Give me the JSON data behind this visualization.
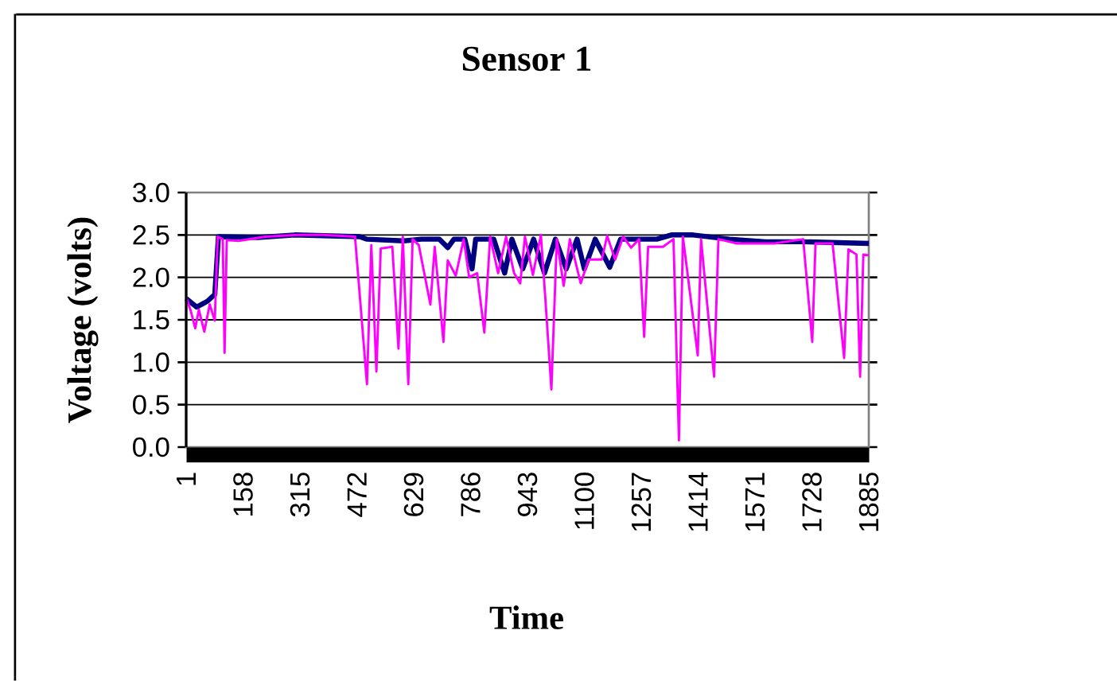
{
  "chart_data": {
    "type": "line",
    "title": "Sensor 1",
    "xlabel": "Time",
    "ylabel": "Voltage (volts)",
    "xlim": [
      1,
      1885
    ],
    "xticks": [
      1,
      158,
      315,
      472,
      629,
      786,
      943,
      1100,
      1257,
      1414,
      1571,
      1728,
      1885
    ],
    "ylim": [
      0,
      3
    ],
    "yticks": [
      {
        "value": 0,
        "label": "0.0"
      },
      0.5,
      {
        "value": 1,
        "label": "1.0"
      },
      1.5,
      {
        "value": 2,
        "label": "2.0"
      },
      2.5,
      {
        "value": 3,
        "label": "3.0"
      }
    ],
    "grid": "y",
    "marker": "none",
    "line_style": "solid",
    "series": [
      {
        "color": "#000080",
        "x": [
          1,
          30,
          60,
          80,
          90,
          200,
          300,
          480,
          500,
          600,
          650,
          700,
          723,
          740,
          770,
          790,
          800,
          850,
          880,
          900,
          930,
          960,
          990,
          1020,
          1050,
          1080,
          1100,
          1130,
          1170,
          1200,
          1300,
          1340,
          1400,
          1500,
          1600,
          1700,
          1885
        ],
        "values": [
          1.75,
          1.65,
          1.72,
          1.8,
          2.48,
          2.47,
          2.5,
          2.48,
          2.45,
          2.43,
          2.45,
          2.45,
          2.35,
          2.45,
          2.45,
          2.1,
          2.45,
          2.45,
          2.05,
          2.45,
          2.1,
          2.45,
          2.05,
          2.45,
          2.1,
          2.45,
          2.1,
          2.45,
          2.12,
          2.45,
          2.45,
          2.5,
          2.5,
          2.45,
          2.42,
          2.42,
          2.4
        ]
      },
      {
        "color": "#ff00ff",
        "x": [
          1,
          14,
          26,
          36,
          51,
          66,
          80,
          88,
          102,
          107,
          113,
          146,
          220,
          307,
          380,
          467,
          500,
          512,
          526,
          538,
          570,
          587,
          599,
          614,
          626,
          643,
          675,
          687,
          711,
          723,
          745,
          767,
          782,
          804,
          824,
          840,
          862,
          884,
          906,
          923,
          936,
          958,
          980,
          992,
          1009,
          1024,
          1043,
          1060,
          1090,
          1112,
          1148,
          1163,
          1185,
          1207,
          1229,
          1251,
          1265,
          1276,
          1317,
          1346,
          1361,
          1372,
          1413,
          1422,
          1458,
          1470,
          1521,
          1624,
          1704,
          1729,
          1738,
          1785,
          1817,
          1829,
          1851,
          1861,
          1870,
          1885
        ],
        "values": [
          1.77,
          1.6,
          1.4,
          1.62,
          1.36,
          1.68,
          1.49,
          2.48,
          2.45,
          1.11,
          2.44,
          2.43,
          2.48,
          2.5,
          2.5,
          2.48,
          0.74,
          2.38,
          0.89,
          2.34,
          2.36,
          1.16,
          2.48,
          0.74,
          2.45,
          2.38,
          1.68,
          2.36,
          1.24,
          2.2,
          2.02,
          2.45,
          2.0,
          2.05,
          1.35,
          2.48,
          2.05,
          2.48,
          2.05,
          1.93,
          2.48,
          2.03,
          2.5,
          1.77,
          0.68,
          2.45,
          1.9,
          2.45,
          1.93,
          2.21,
          2.21,
          2.49,
          2.21,
          2.48,
          2.35,
          2.45,
          1.3,
          2.36,
          2.36,
          2.45,
          0.08,
          2.48,
          1.08,
          2.45,
          0.83,
          2.45,
          2.4,
          2.4,
          2.45,
          1.24,
          2.4,
          2.4,
          1.05,
          2.33,
          2.27,
          0.83,
          2.27,
          2.26
        ]
      }
    ]
  }
}
